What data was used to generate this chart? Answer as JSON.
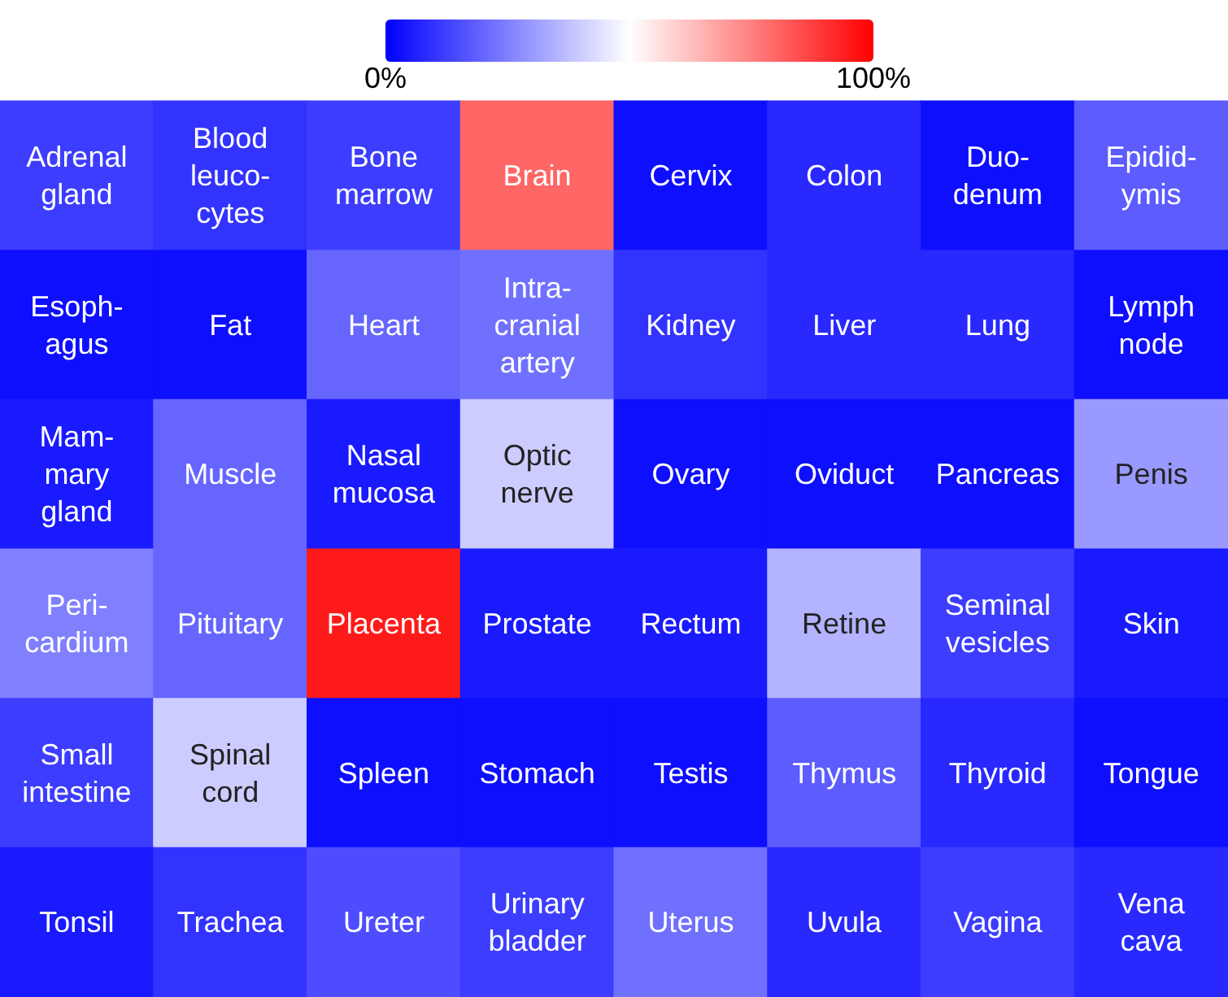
{
  "chart_data": {
    "type": "heatmap",
    "categories": [
      null,
      null,
      null,
      null,
      null,
      null,
      null,
      null
    ],
    "y_categories": [
      null,
      null,
      null,
      null,
      null,
      null
    ],
    "cells": [
      [
        12,
        10,
        12,
        80,
        3,
        8,
        3,
        18
      ],
      [
        3,
        3,
        20,
        22,
        10,
        8,
        8,
        3
      ],
      [
        5,
        20,
        5,
        40,
        3,
        3,
        3,
        30
      ],
      [
        25,
        20,
        95,
        5,
        5,
        35,
        12,
        5
      ],
      [
        12,
        40,
        3,
        3,
        3,
        18,
        8,
        3
      ],
      [
        5,
        10,
        15,
        12,
        22,
        8,
        12,
        8
      ]
    ],
    "cell_labels": [
      [
        "Adrenal\ngland",
        "Blood\nleuco-\ncytes",
        "Bone\nmarrow",
        "Brain",
        "Cervix",
        "Colon",
        "Duo-\ndenum",
        "Epidid-\nymis"
      ],
      [
        "Esoph-\nagus",
        "Fat",
        "Heart",
        "Intra-\ncranial\nartery",
        "Kidney",
        "Liver",
        "Lung",
        "Lymph\nnode"
      ],
      [
        "Mam-\nmary\ngland",
        "Muscle",
        "Nasal\nmucosa",
        "Optic\nnerve",
        "Ovary",
        "Oviduct",
        "Pancreas",
        "Penis"
      ],
      [
        "Peri-\ncardium",
        "Pituitary",
        "Placenta",
        "Prostate",
        "Rectum",
        "Retine",
        "Seminal\nvesicles",
        "Skin"
      ],
      [
        "Small\nintestine",
        "Spinal\ncord",
        "Spleen",
        "Stomach",
        "Testis",
        "Thymus",
        "Thyroid",
        "Tongue"
      ],
      [
        "Tonsil",
        "Trachea",
        "Ureter",
        "Urinary\nbladder",
        "Uterus",
        "Uvula",
        "Vagina",
        "Vena\ncava"
      ]
    ],
    "clim": [
      0,
      100
    ],
    "cticks": [
      {
        "value": 0,
        "label": "0%"
      },
      {
        "value": 100,
        "label": "100%"
      }
    ]
  }
}
